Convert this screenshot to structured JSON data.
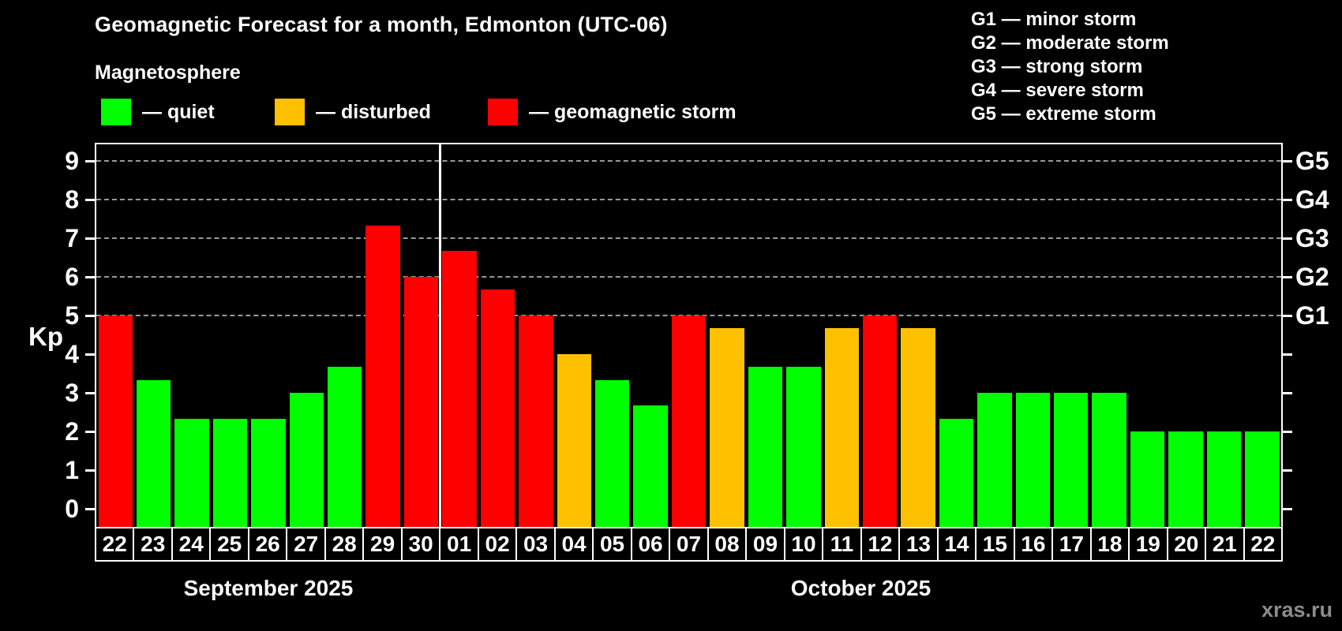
{
  "title": "Geomagnetic Forecast for a month, Edmonton (UTC-06)",
  "subtitle": "Magnetosphere",
  "legend": {
    "items": [
      {
        "key": "quiet",
        "label": "— quiet",
        "color": "#00ff00"
      },
      {
        "key": "disturbed",
        "label": "— disturbed",
        "color": "#ffc000"
      },
      {
        "key": "storm",
        "label": "— geomagnetic storm",
        "color": "#ff0000"
      }
    ]
  },
  "g_legend": [
    "G1 — minor storm",
    "G2 — moderate storm",
    "G3 — strong storm",
    "G4 — severe storm",
    "G5 — extreme storm"
  ],
  "y_axis": {
    "label": "Kp",
    "ticks": [
      0,
      1,
      2,
      3,
      4,
      5,
      6,
      7,
      8,
      9
    ]
  },
  "right_axis": {
    "ticks": [
      0,
      1,
      2,
      3,
      4,
      5,
      6,
      7,
      8,
      9
    ],
    "labels": [
      {
        "kp": 5,
        "label": "G1"
      },
      {
        "kp": 6,
        "label": "G2"
      },
      {
        "kp": 7,
        "label": "G3"
      },
      {
        "kp": 8,
        "label": "G4"
      },
      {
        "kp": 9,
        "label": "G5"
      }
    ]
  },
  "months": [
    {
      "label": "September 2025",
      "days": 9
    },
    {
      "label": "October 2025",
      "days": 22
    }
  ],
  "watermark": "xras.ru",
  "colors": {
    "quiet": "#00ff00",
    "disturbed": "#ffc000",
    "storm": "#ff0000",
    "grid": "#999999",
    "axis": "#ffffff",
    "background": "#000000",
    "watermark": "#8c8c8c"
  },
  "chart_data": {
    "type": "bar",
    "title": "Geomagnetic Forecast for a month, Edmonton (UTC-06)",
    "xlabel": "",
    "ylabel": "Kp",
    "ylim": [
      0,
      9
    ],
    "gridlines_at_kp": [
      5,
      6,
      7,
      8,
      9
    ],
    "legend_position": "top",
    "categories": [
      "22",
      "23",
      "24",
      "25",
      "26",
      "27",
      "28",
      "29",
      "30",
      "01",
      "02",
      "03",
      "04",
      "05",
      "06",
      "07",
      "08",
      "09",
      "10",
      "11",
      "12",
      "13",
      "14",
      "15",
      "16",
      "17",
      "18",
      "19",
      "20",
      "21",
      "22"
    ],
    "values": [
      5.0,
      3.33,
      2.33,
      2.33,
      2.33,
      3.0,
      3.67,
      7.33,
      6.0,
      6.67,
      5.67,
      5.0,
      4.0,
      3.33,
      2.67,
      5.0,
      4.67,
      3.67,
      3.67,
      4.67,
      5.0,
      4.67,
      2.33,
      3.0,
      3.0,
      3.0,
      3.0,
      2.0,
      2.0,
      2.0,
      2.0
    ],
    "statuses": [
      "storm",
      "quiet",
      "quiet",
      "quiet",
      "quiet",
      "quiet",
      "quiet",
      "storm",
      "storm",
      "storm",
      "storm",
      "storm",
      "disturbed",
      "quiet",
      "quiet",
      "storm",
      "disturbed",
      "quiet",
      "quiet",
      "disturbed",
      "storm",
      "disturbed",
      "quiet",
      "quiet",
      "quiet",
      "quiet",
      "quiet",
      "quiet",
      "quiet",
      "quiet",
      "quiet"
    ],
    "months": [
      {
        "label": "September 2025",
        "days": 9
      },
      {
        "label": "October 2025",
        "days": 22
      }
    ]
  }
}
